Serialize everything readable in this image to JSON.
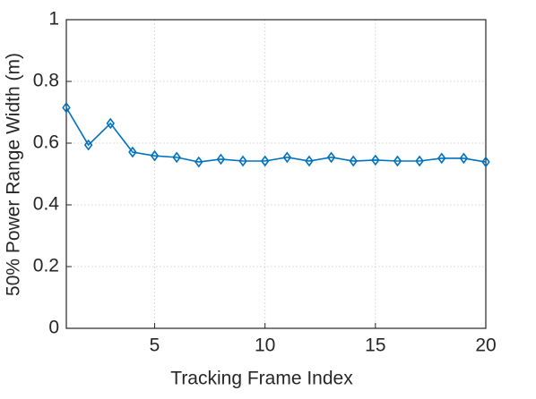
{
  "chart_data": {
    "type": "line",
    "xlabel": "Tracking Frame Index",
    "ylabel": "50% Power Range Width (m)",
    "x": [
      1,
      2,
      3,
      4,
      5,
      6,
      7,
      8,
      9,
      10,
      11,
      12,
      13,
      14,
      15,
      16,
      17,
      18,
      19,
      20
    ],
    "series": [
      {
        "color": "#0072bd",
        "marker": "diamond",
        "values": [
          0.715,
          0.594,
          0.664,
          0.571,
          0.559,
          0.554,
          0.539,
          0.548,
          0.542,
          0.542,
          0.554,
          0.542,
          0.554,
          0.542,
          0.545,
          0.542,
          0.542,
          0.551,
          0.551,
          0.539
        ]
      }
    ],
    "xlim": [
      1,
      20
    ],
    "xticks": [
      5,
      10,
      15,
      20
    ],
    "ylim": [
      0,
      1
    ],
    "yticks": [
      0,
      0.2,
      0.4,
      0.6,
      0.8,
      1
    ],
    "grid": true
  }
}
